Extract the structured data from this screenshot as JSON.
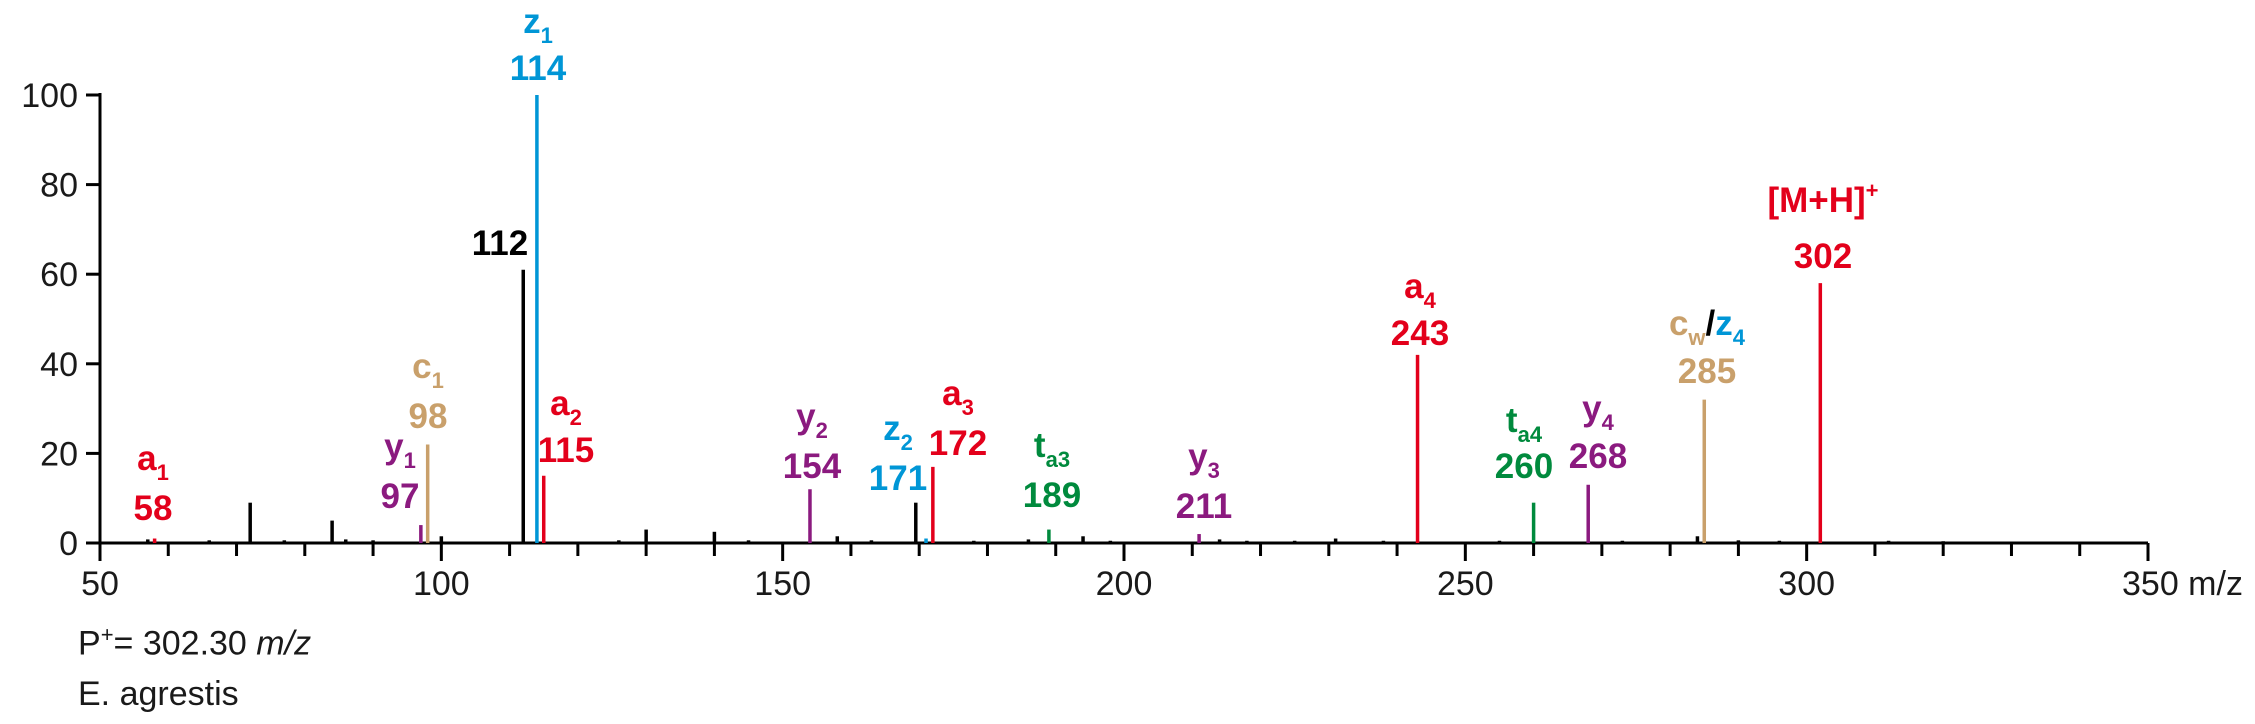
{
  "colors": {
    "axis": "#000000",
    "a": "#e3001b",
    "c": "#c9a06b",
    "y": "#8b1a7f",
    "z": "#0096d6",
    "t": "#008a3d",
    "other": "#000000"
  },
  "chart_data": {
    "type": "bar",
    "xlim": [
      50,
      350
    ],
    "ylim": [
      0,
      100
    ],
    "x_ticks": [
      "50",
      "100",
      "150",
      "200",
      "250",
      "300",
      "350 m/z"
    ],
    "y_ticks": [
      "0",
      "20",
      "40",
      "60",
      "80",
      "100"
    ],
    "annotated_peaks": [
      {
        "mz": 58,
        "intensity": 1,
        "color": "a",
        "ion": "a",
        "sub": "1",
        "value": "58"
      },
      {
        "mz": 97,
        "intensity": 4,
        "color": "y",
        "ion": "y",
        "sub": "1",
        "value": "97"
      },
      {
        "mz": 98,
        "intensity": 22,
        "color": "c",
        "ion": "c",
        "sub": "1",
        "value": "98"
      },
      {
        "mz": 112,
        "intensity": 61,
        "color": "other",
        "ion": "",
        "sub": "",
        "value": "112"
      },
      {
        "mz": 114,
        "intensity": 100,
        "color": "z",
        "ion": "z",
        "sub": "1",
        "value": "114"
      },
      {
        "mz": 115,
        "intensity": 15,
        "color": "a",
        "ion": "a",
        "sub": "2",
        "value": "115"
      },
      {
        "mz": 154,
        "intensity": 12,
        "color": "y",
        "ion": "y",
        "sub": "2",
        "value": "154"
      },
      {
        "mz": 171,
        "intensity": 1,
        "color": "z",
        "ion": "z",
        "sub": "2",
        "value": "171"
      },
      {
        "mz": 172,
        "intensity": 17,
        "color": "a",
        "ion": "a",
        "sub": "3",
        "value": "172"
      },
      {
        "mz": 189,
        "intensity": 3,
        "color": "t",
        "ion": "t",
        "sub": "a3",
        "value": "189"
      },
      {
        "mz": 211,
        "intensity": 2,
        "color": "y",
        "ion": "y",
        "sub": "3",
        "value": "211"
      },
      {
        "mz": 243,
        "intensity": 42,
        "color": "a",
        "ion": "a",
        "sub": "4",
        "value": "243"
      },
      {
        "mz": 260,
        "intensity": 9,
        "color": "t",
        "ion": "t",
        "sub": "a4",
        "value": "260"
      },
      {
        "mz": 268,
        "intensity": 13,
        "color": "y",
        "ion": "y",
        "sub": "4",
        "value": "268"
      },
      {
        "mz": 285,
        "intensity": 32,
        "color": "c",
        "ion": "cw/z",
        "sub": "4",
        "value": "285"
      },
      {
        "mz": 302,
        "intensity": 58,
        "color": "a",
        "ion": "[M+H]",
        "sup": "+",
        "value": "302"
      }
    ],
    "unlabeled_peaks": [
      {
        "mz": 72,
        "intensity": 9
      },
      {
        "mz": 84,
        "intensity": 5
      },
      {
        "mz": 100,
        "intensity": 1.5
      },
      {
        "mz": 130,
        "intensity": 3
      },
      {
        "mz": 140,
        "intensity": 2.5
      },
      {
        "mz": 158,
        "intensity": 1.5
      },
      {
        "mz": 169.5,
        "intensity": 9
      },
      {
        "mz": 194,
        "intensity": 1.5
      },
      {
        "mz": 231,
        "intensity": 1
      },
      {
        "mz": 284,
        "intensity": 1.5
      },
      {
        "mz": 57,
        "intensity": 0.8
      },
      {
        "mz": 66,
        "intensity": 0.6
      },
      {
        "mz": 77,
        "intensity": 0.6
      },
      {
        "mz": 86,
        "intensity": 0.8
      },
      {
        "mz": 90,
        "intensity": 0.6
      },
      {
        "mz": 126,
        "intensity": 0.6
      },
      {
        "mz": 145,
        "intensity": 0.6
      },
      {
        "mz": 163,
        "intensity": 0.6
      },
      {
        "mz": 178,
        "intensity": 0.5
      },
      {
        "mz": 186,
        "intensity": 0.8
      },
      {
        "mz": 198,
        "intensity": 0.5
      },
      {
        "mz": 214,
        "intensity": 0.8
      },
      {
        "mz": 218,
        "intensity": 0.5
      },
      {
        "mz": 225,
        "intensity": 0.5
      },
      {
        "mz": 238,
        "intensity": 0.5
      },
      {
        "mz": 255,
        "intensity": 0.5
      },
      {
        "mz": 273,
        "intensity": 0.5
      },
      {
        "mz": 290,
        "intensity": 0.6
      },
      {
        "mz": 296,
        "intensity": 0.5
      },
      {
        "mz": 312,
        "intensity": 0.5
      },
      {
        "mz": 320,
        "intensity": 0.4
      }
    ]
  },
  "footer": {
    "precursor_prefix": "P",
    "precursor_sup": "+",
    "precursor_value": "= 302.30 ",
    "precursor_unit": "m/z",
    "species": "E. agrestis"
  }
}
